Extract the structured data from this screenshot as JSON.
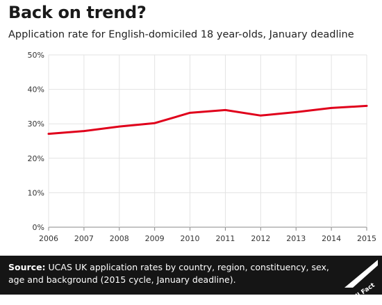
{
  "header": {
    "title": "Back on trend?",
    "subtitle": "Application rate for English-domiciled 18 year-olds, January deadline"
  },
  "footer": {
    "source_label": "Source:",
    "source_text": " UCAS UK application rates by country, region, constituency, sex, age and background (2015 cycle, January deadline).",
    "logo_text": "Full Fact"
  },
  "colors": {
    "line": "#e0001b",
    "grid": "#e3e3e3",
    "footer_bg": "#151515"
  },
  "chart_data": {
    "type": "line",
    "x": [
      2006,
      2007,
      2008,
      2009,
      2010,
      2011,
      2012,
      2013,
      2014,
      2015
    ],
    "series": [
      {
        "values": [
          27.1,
          27.9,
          29.2,
          30.2,
          33.2,
          34.0,
          32.4,
          33.4,
          34.6,
          35.2
        ]
      }
    ],
    "yticks": [
      "0%",
      "10%",
      "20%",
      "30%",
      "40%",
      "50%"
    ],
    "xticks": [
      "2006",
      "2007",
      "2008",
      "2009",
      "2010",
      "2011",
      "2012",
      "2013",
      "2014",
      "2015"
    ],
    "ylim": [
      0,
      50
    ],
    "xlim": [
      2006,
      2015
    ],
    "grid": true,
    "title": "Back on trend?",
    "xlabel": "",
    "ylabel": ""
  }
}
